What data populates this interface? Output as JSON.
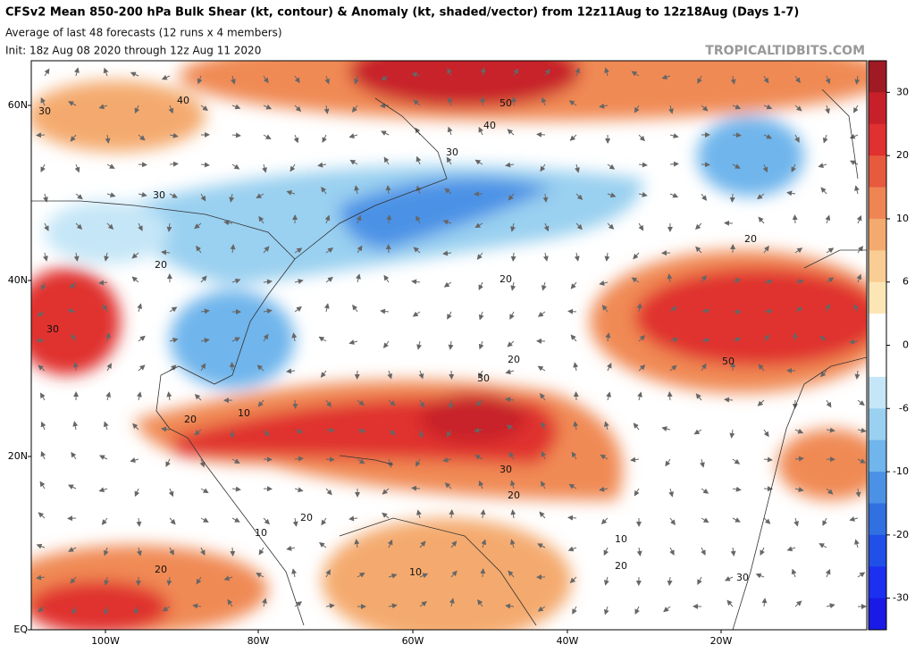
{
  "header": {
    "title": "CFSv2 Mean 850-200 hPa Bulk Shear (kt, contour) & Anomaly (kt, shaded/vector) from 12z11Aug to 12z18Aug (Days 1-7)",
    "subtitle": "Average of last 48 forecasts (12 runs x 4 members)",
    "init": "Init: 18z Aug 08 2020 through 12z Aug 11 2020",
    "watermark": "TROPICALTIDBITS.COM"
  },
  "map": {
    "lat_labels": [
      "60N",
      "40N",
      "20N",
      "EQ"
    ],
    "lon_labels": [
      "100W",
      "80W",
      "60W",
      "40W",
      "20W"
    ],
    "contour_labels": [
      40,
      30,
      50,
      40,
      30,
      30,
      20,
      20,
      20,
      30,
      50,
      20,
      30,
      10,
      20,
      30,
      20,
      20,
      10,
      10,
      20,
      10,
      20,
      30
    ]
  },
  "colorbar": {
    "ticks": [
      30,
      20,
      10,
      6,
      0,
      -6,
      -10,
      -20,
      -30
    ]
  }
}
